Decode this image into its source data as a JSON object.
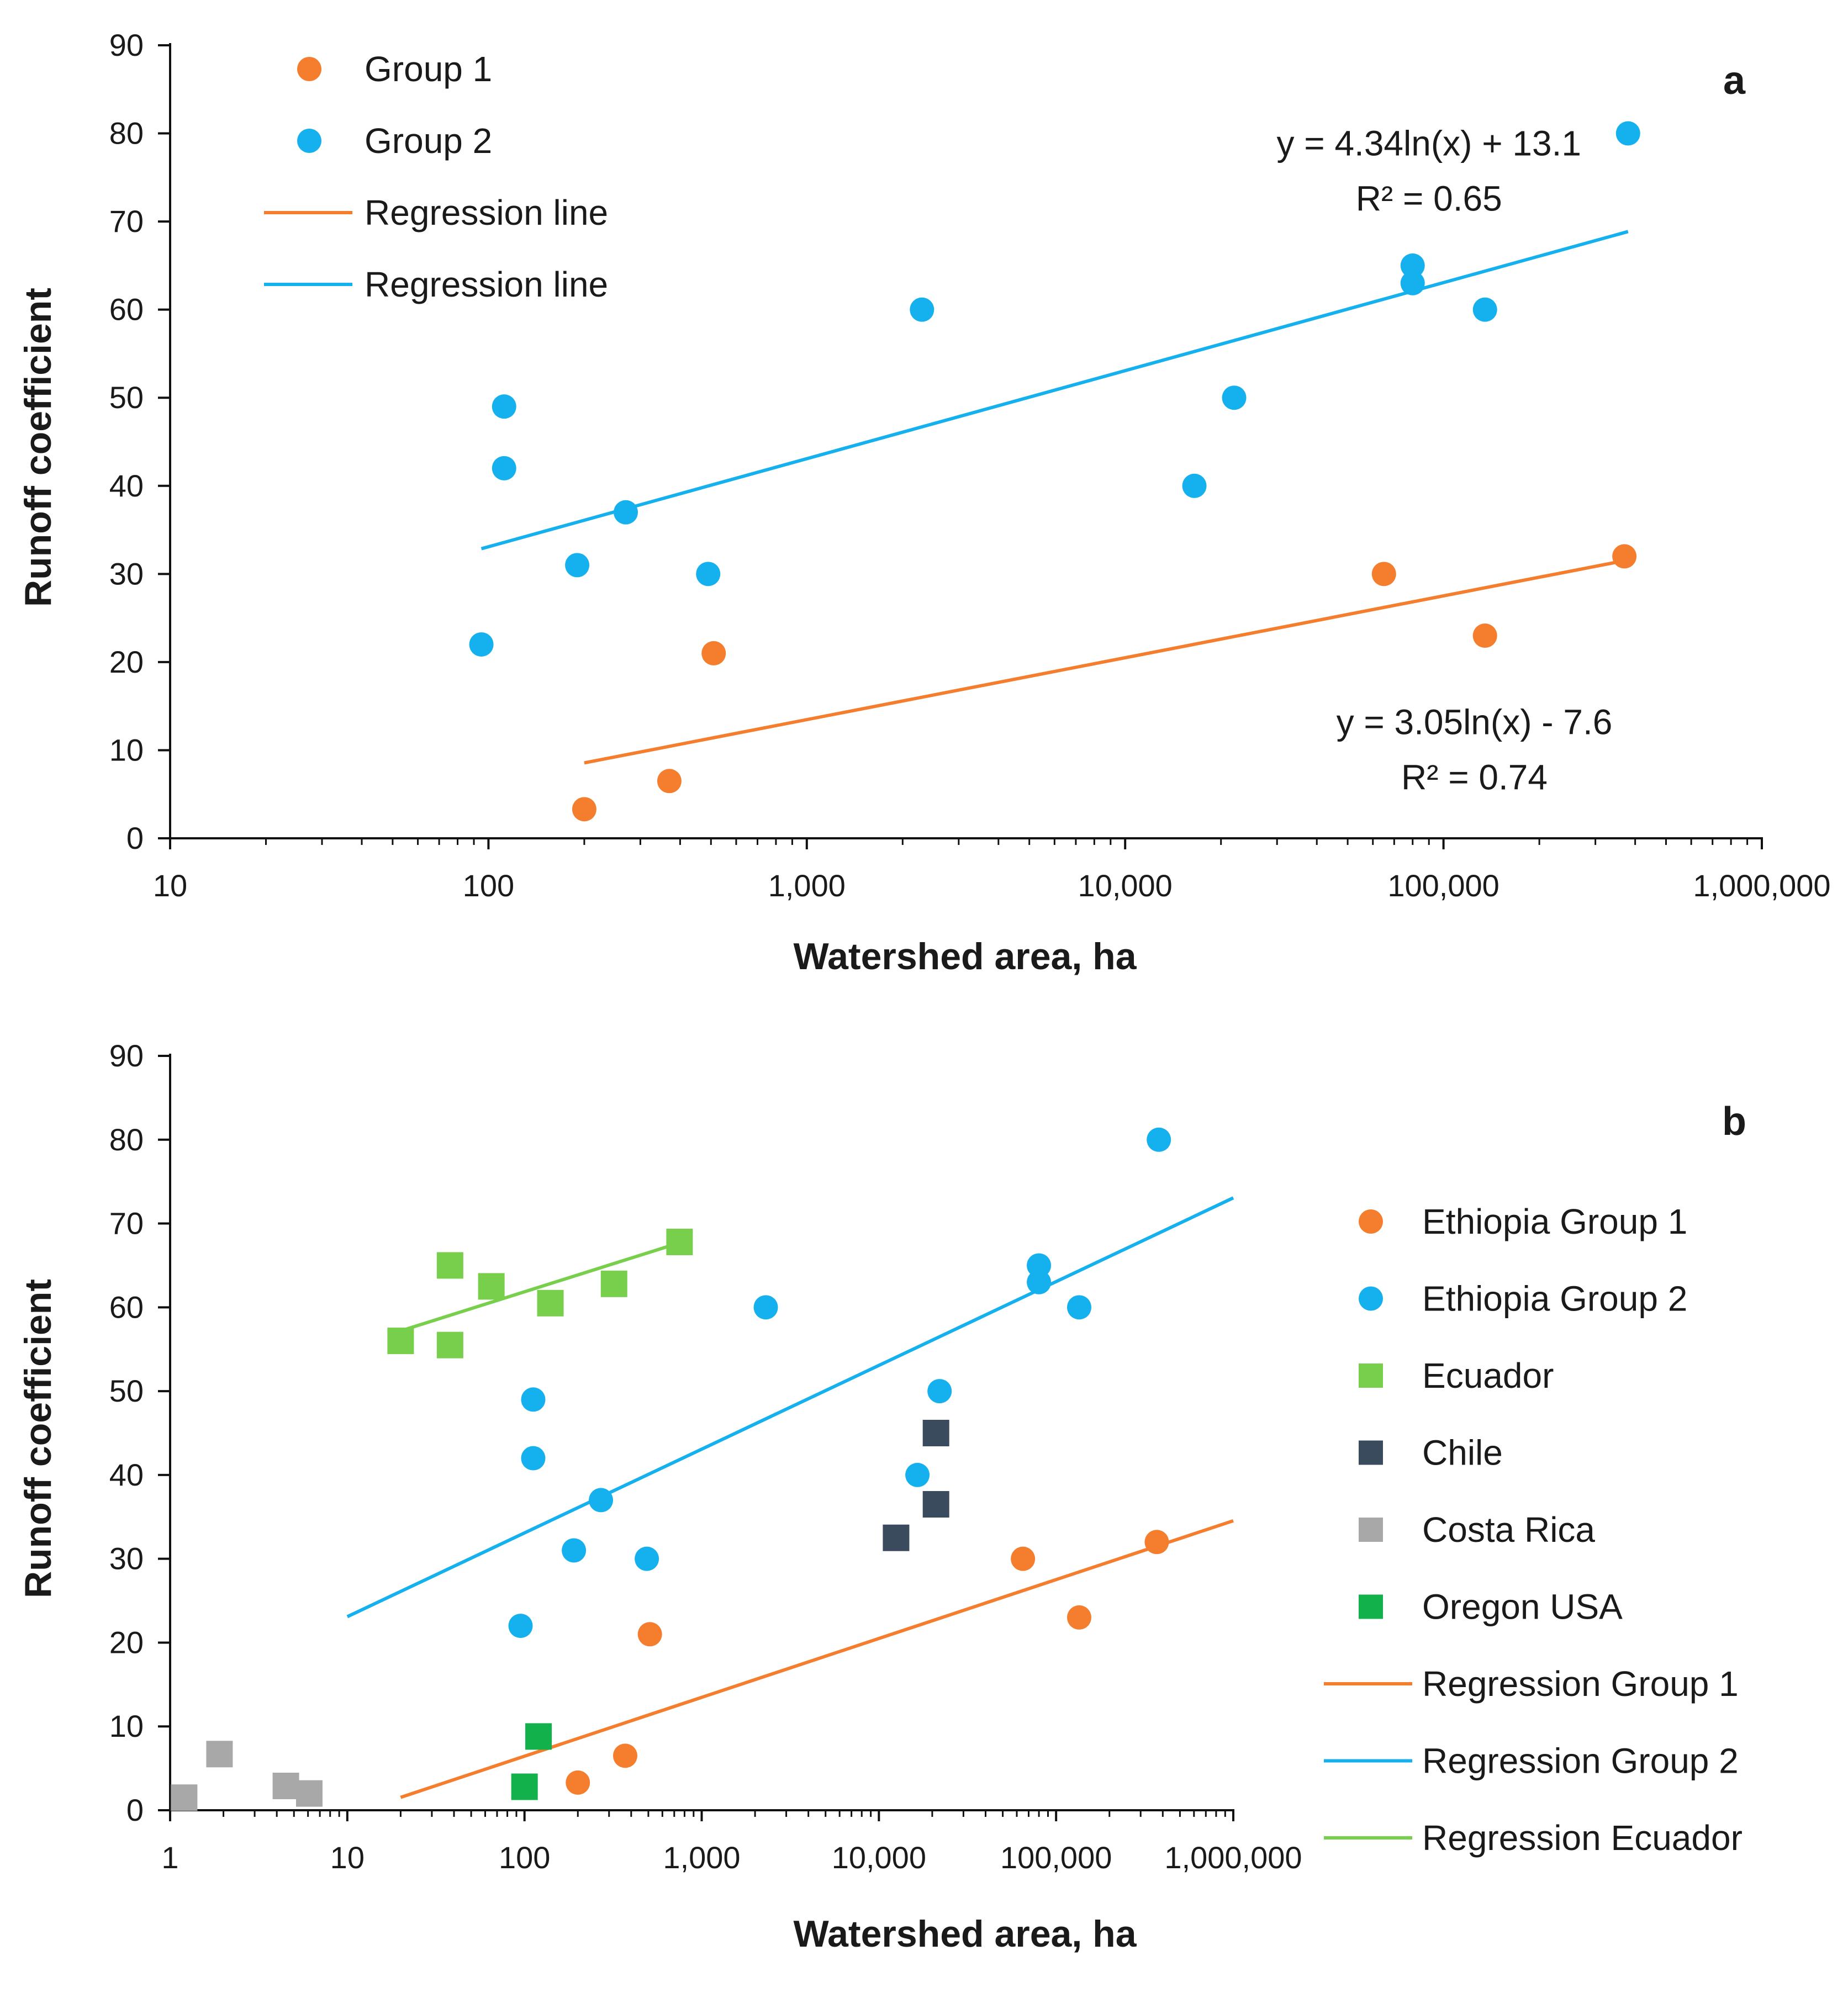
{
  "colors": {
    "orange": "#F47E2E",
    "blue": "#15B1EE",
    "ecuador": "#77CF4B",
    "chile": "#3B4B5E",
    "costa_rica": "#A8A8A8",
    "oregon": "#12B14C",
    "axis": "#111111"
  },
  "chart_data": [
    {
      "panel": "a",
      "type": "scatter",
      "title": "",
      "panel_label": "a",
      "xlabel": "Watershed area, ha",
      "ylabel": "Runoff coefficient",
      "xscale": "log",
      "xlim": [
        10,
        1000000
      ],
      "ylim": [
        0,
        90
      ],
      "xticks": [
        10,
        100,
        1000,
        10000,
        100000,
        1000000
      ],
      "xtick_labels": [
        "10",
        "100",
        "1,000",
        "10,000",
        "100,000",
        "1,000,000"
      ],
      "yticks": [
        0,
        10,
        20,
        30,
        40,
        50,
        60,
        70,
        80,
        90
      ],
      "ytick_labels": [
        "0",
        "10",
        "20",
        "30",
        "40",
        "50",
        "60",
        "70",
        "80",
        "90"
      ],
      "legend_position": "top-left",
      "legend": [
        {
          "label": "Group 1",
          "marker": "circle",
          "color": "orange"
        },
        {
          "label": "Group 2",
          "marker": "circle",
          "color": "blue"
        },
        {
          "label": "Regression line",
          "marker": "line",
          "color": "orange"
        },
        {
          "label": "Regression line",
          "marker": "line",
          "color": "blue"
        }
      ],
      "series": [
        {
          "name": "Group 1",
          "marker": "circle",
          "color": "orange",
          "points": [
            [
              200,
              3.3
            ],
            [
              370,
              6.5
            ],
            [
              510,
              21
            ],
            [
              65000,
              30
            ],
            [
              135000,
              23
            ],
            [
              370000,
              32
            ]
          ]
        },
        {
          "name": "Group 2",
          "marker": "circle",
          "color": "blue",
          "points": [
            [
              95,
              22
            ],
            [
              112,
              49
            ],
            [
              112,
              42
            ],
            [
              190,
              31
            ],
            [
              270,
              37
            ],
            [
              490,
              30
            ],
            [
              2300,
              60
            ],
            [
              16500,
              40
            ],
            [
              22000,
              50
            ],
            [
              80000,
              65
            ],
            [
              80000,
              63
            ],
            [
              135000,
              60
            ],
            [
              380000,
              80
            ]
          ]
        }
      ],
      "regressions": [
        {
          "name": "Regression line (Group 1)",
          "color": "orange",
          "a": 3.05,
          "b": -7.6,
          "x_range": [
            200,
            370000
          ],
          "equation": "y = 3.05ln(x) - 7.6",
          "r2": "R² = 0.74",
          "label_anchor": [
            125000,
            11.8
          ]
        },
        {
          "name": "Regression line (Group 2)",
          "color": "blue",
          "a": 4.34,
          "b": 13.1,
          "x_range": [
            95,
            380000
          ],
          "equation": "y = 4.34ln(x) + 13.1",
          "r2": "R² = 0.65",
          "label_anchor": [
            90000,
            77.5
          ]
        }
      ]
    },
    {
      "panel": "b",
      "type": "scatter",
      "title": "",
      "panel_label": "b",
      "xlabel": "Watershed area, ha",
      "ylabel": "Runoff coefficient",
      "xscale": "log",
      "xlim": [
        1,
        1000000
      ],
      "ylim": [
        0,
        90
      ],
      "xticks": [
        1,
        10,
        100,
        1000,
        10000,
        100000,
        1000000
      ],
      "xtick_labels": [
        "1",
        "10",
        "100",
        "1,000",
        "10,000",
        "100,000",
        "1,000,000"
      ],
      "yticks": [
        0,
        10,
        20,
        30,
        40,
        50,
        60,
        70,
        80,
        90
      ],
      "ytick_labels": [
        "0",
        "10",
        "20",
        "30",
        "40",
        "50",
        "60",
        "70",
        "80",
        "90"
      ],
      "legend_position": "right",
      "legend": [
        {
          "label": "Ethiopia Group 1",
          "marker": "circle",
          "color": "orange"
        },
        {
          "label": "Ethiopia Group 2",
          "marker": "circle",
          "color": "blue"
        },
        {
          "label": "Ecuador",
          "marker": "square",
          "color": "ecuador"
        },
        {
          "label": "Chile",
          "marker": "square",
          "color": "chile"
        },
        {
          "label": "Costa Rica",
          "marker": "square",
          "color": "costa_rica"
        },
        {
          "label": "Oregon USA",
          "marker": "square",
          "color": "oregon"
        },
        {
          "label": "Regression Group 1",
          "marker": "line",
          "color": "orange"
        },
        {
          "label": "Regression Group 2",
          "marker": "line",
          "color": "blue"
        },
        {
          "label": "Regression Ecuador",
          "marker": "line",
          "color": "ecuador"
        }
      ],
      "series": [
        {
          "name": "Ethiopia Group 1",
          "marker": "circle",
          "color": "orange",
          "points": [
            [
              200,
              3.3
            ],
            [
              370,
              6.5
            ],
            [
              510,
              21
            ],
            [
              65000,
              30
            ],
            [
              135000,
              23
            ],
            [
              370000,
              32
            ]
          ]
        },
        {
          "name": "Ethiopia Group 2",
          "marker": "circle",
          "color": "blue",
          "points": [
            [
              95,
              22
            ],
            [
              112,
              49
            ],
            [
              112,
              42
            ],
            [
              190,
              31
            ],
            [
              270,
              37
            ],
            [
              490,
              30
            ],
            [
              2300,
              60
            ],
            [
              16500,
              40
            ],
            [
              22000,
              50
            ],
            [
              80000,
              65
            ],
            [
              80000,
              63
            ],
            [
              135000,
              60
            ],
            [
              380000,
              80
            ]
          ]
        },
        {
          "name": "Ecuador",
          "marker": "square",
          "color": "ecuador",
          "points": [
            [
              20,
              56
            ],
            [
              38,
              65
            ],
            [
              38,
              55.5
            ],
            [
              65,
              62.5
            ],
            [
              140,
              60.5
            ],
            [
              320,
              62.8
            ],
            [
              750,
              67.8
            ]
          ]
        },
        {
          "name": "Chile",
          "marker": "square",
          "color": "chile",
          "points": [
            [
              12500,
              32.5
            ],
            [
              21000,
              45
            ],
            [
              21000,
              36.5
            ]
          ]
        },
        {
          "name": "Costa Rica",
          "marker": "square",
          "color": "costa_rica",
          "points": [
            [
              1.2,
              1.5
            ],
            [
              1.9,
              6.7
            ],
            [
              4.5,
              2.9
            ],
            [
              6.1,
              2.0
            ]
          ]
        },
        {
          "name": "Oregon USA",
          "marker": "square",
          "color": "oregon",
          "points": [
            [
              100,
              2.8
            ],
            [
              120,
              8.8
            ]
          ]
        }
      ],
      "regressions": [
        {
          "name": "Regression Group 1",
          "color": "orange",
          "a": 3.05,
          "b": -7.6,
          "x_range": [
            20,
            1000000
          ]
        },
        {
          "name": "Regression Group 2",
          "color": "blue",
          "a": 4.34,
          "b": 13.1,
          "x_range": [
            10,
            1000000
          ]
        },
        {
          "name": "Regression Ecuador",
          "color": "ecuador",
          "a": 2.9,
          "b": 48.5,
          "x_range": [
            20,
            800
          ]
        }
      ]
    }
  ]
}
